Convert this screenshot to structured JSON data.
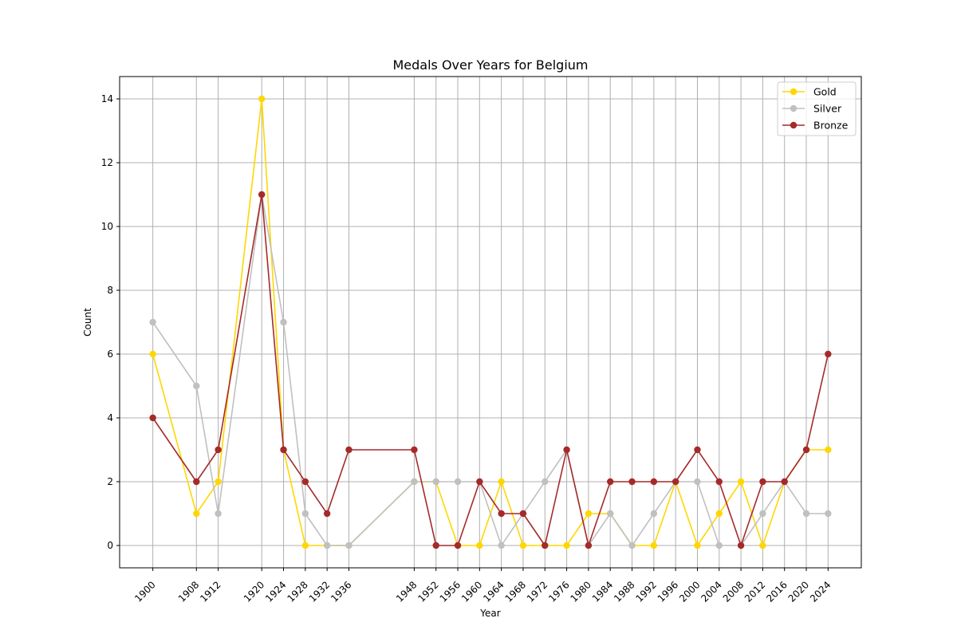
{
  "chart_data": {
    "type": "line",
    "title": "Medals Over Years for Belgium",
    "xlabel": "Year",
    "ylabel": "Count",
    "x": [
      1900,
      1908,
      1912,
      1920,
      1924,
      1928,
      1932,
      1936,
      1948,
      1952,
      1956,
      1960,
      1964,
      1968,
      1972,
      1976,
      1980,
      1984,
      1988,
      1992,
      1996,
      2000,
      2004,
      2008,
      2012,
      2016,
      2020,
      2024
    ],
    "xlim": [
      1893.9,
      2030.1
    ],
    "ylim": [
      -0.7,
      14.7
    ],
    "yticks": [
      0,
      2,
      4,
      6,
      8,
      10,
      12,
      14
    ],
    "grid": true,
    "legend_position": "upper right",
    "series": [
      {
        "name": "Gold",
        "color": "#FFD700",
        "values": [
          6,
          1,
          2,
          14,
          3,
          0,
          0,
          0,
          2,
          2,
          0,
          0,
          2,
          0,
          0,
          0,
          1,
          1,
          0,
          0,
          2,
          0,
          1,
          2,
          0,
          2,
          3,
          3
        ]
      },
      {
        "name": "Silver",
        "color": "#C0C0C0",
        "values": [
          7,
          5,
          1,
          11,
          7,
          1,
          0,
          0,
          2,
          2,
          2,
          2,
          0,
          1,
          2,
          3,
          0,
          1,
          0,
          1,
          2,
          2,
          0,
          0,
          1,
          2,
          1,
          1
        ]
      },
      {
        "name": "Bronze",
        "color": "#A52A2A",
        "values": [
          4,
          2,
          3,
          11,
          3,
          2,
          1,
          3,
          3,
          0,
          0,
          2,
          1,
          1,
          0,
          3,
          0,
          2,
          2,
          2,
          2,
          3,
          2,
          0,
          2,
          2,
          3,
          6
        ]
      }
    ]
  }
}
